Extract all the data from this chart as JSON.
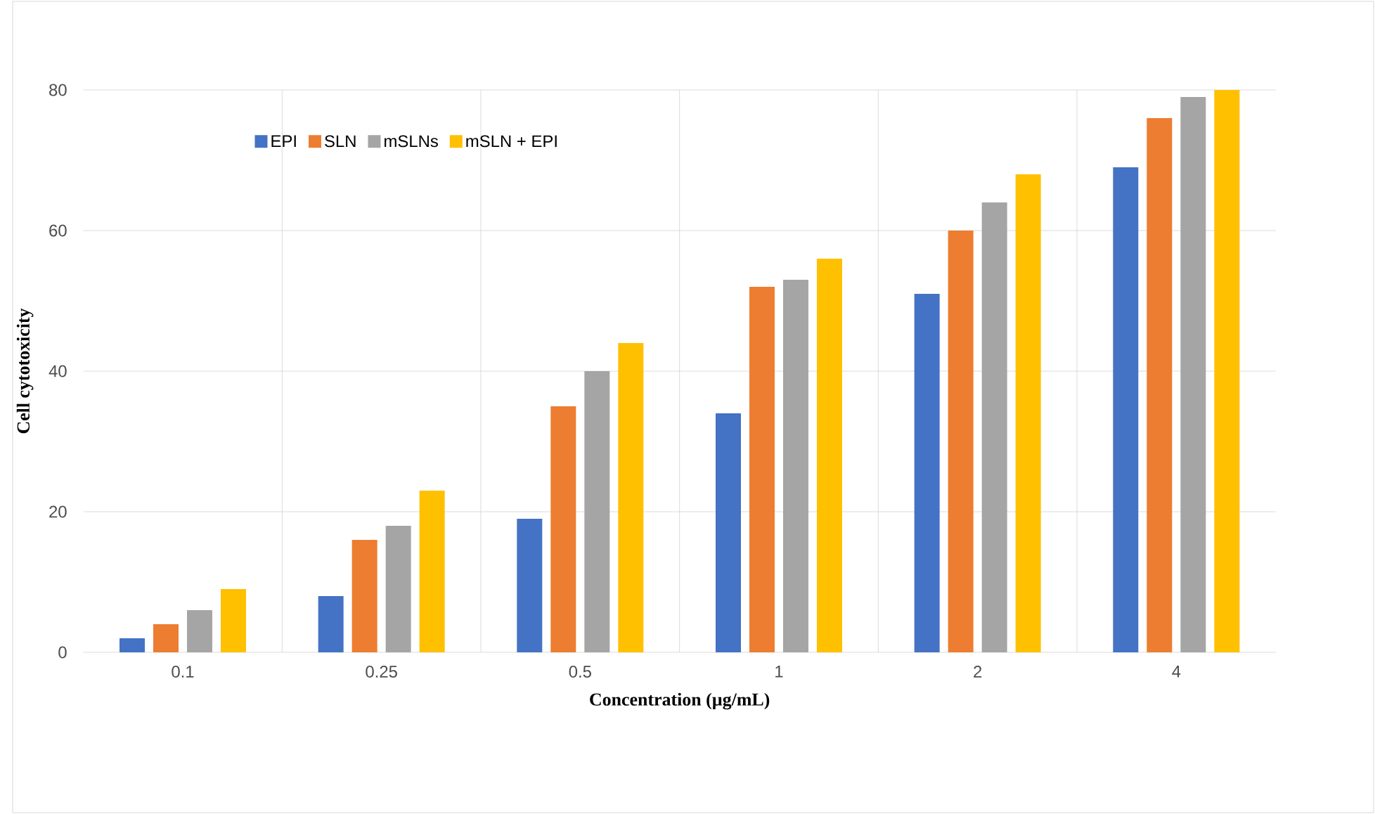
{
  "chart_data": {
    "type": "bar",
    "xlabel": "Concentration (µg/mL)",
    "ylabel": "Cell cytotoxicity",
    "categories": [
      "0.1",
      "0.25",
      "0.5",
      "1",
      "2",
      "4"
    ],
    "series": [
      {
        "name": "EPI",
        "color": "#4472c4",
        "values": [
          2,
          8,
          19,
          34,
          51,
          69
        ]
      },
      {
        "name": "SLN",
        "color": "#ed7d31",
        "values": [
          4,
          16,
          35,
          52,
          60,
          76
        ]
      },
      {
        "name": "mSLNs",
        "color": "#a5a5a5",
        "values": [
          6,
          18,
          40,
          53,
          64,
          79
        ]
      },
      {
        "name": "mSLN + EPI",
        "color": "#ffc000",
        "values": [
          9,
          23,
          44,
          56,
          68,
          80
        ]
      }
    ],
    "ylim": [
      0,
      80
    ],
    "yticks": [
      0,
      20,
      40,
      60,
      80
    ],
    "grid": true,
    "legend": "top left"
  }
}
